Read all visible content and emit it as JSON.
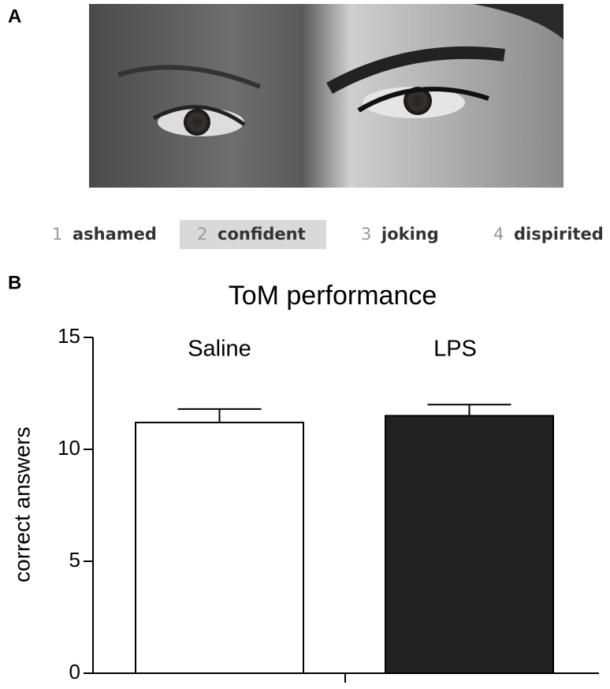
{
  "panel_a": {
    "label": "A",
    "options": [
      {
        "number": 1,
        "word": "ashamed",
        "highlighted": false
      },
      {
        "number": 2,
        "word": "confident",
        "highlighted": true
      },
      {
        "number": 3,
        "word": "joking",
        "highlighted": false
      },
      {
        "number": 4,
        "word": "dispirited",
        "highlighted": false
      }
    ]
  },
  "panel_b": {
    "label": "B"
  },
  "chart_data": {
    "type": "bar",
    "title": "ToM performance",
    "y_label": "correct answers",
    "categories": [
      "Saline",
      "LPS"
    ],
    "values": [
      11.2,
      11.5
    ],
    "errors": [
      0.6,
      0.5
    ],
    "colors": [
      "#ffffff",
      "#222222"
    ],
    "ylim": [
      0,
      15
    ],
    "yticks": [
      0,
      5,
      10,
      15
    ]
  }
}
